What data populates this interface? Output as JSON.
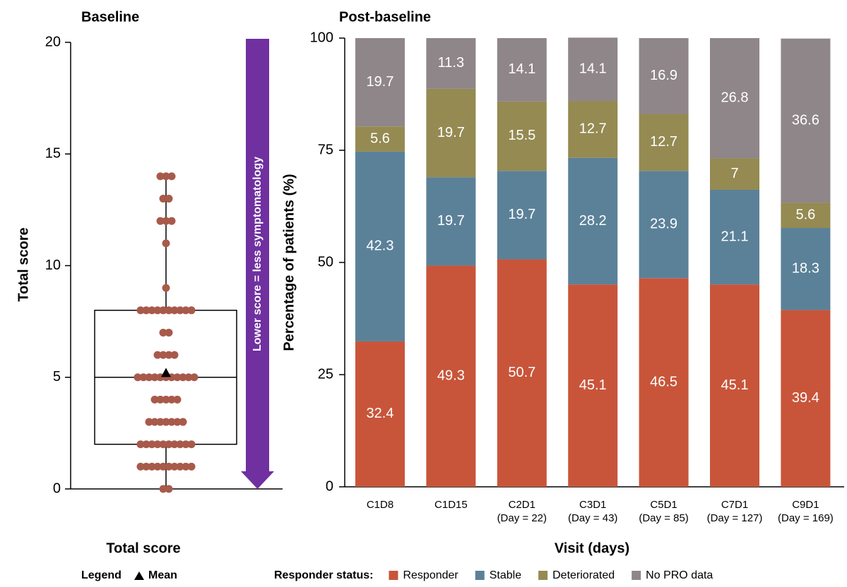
{
  "chart_data": [
    {
      "type": "box",
      "title": "Baseline",
      "ylabel": "Total score",
      "xlabel": "Total score",
      "ylim": [
        0,
        20
      ],
      "yticks": [
        0,
        5,
        10,
        15,
        20
      ],
      "box": {
        "min": 0,
        "q1": 2,
        "median": 5,
        "q3": 8,
        "max": 14,
        "mean": 5.2
      },
      "points": [
        0,
        0,
        1,
        1,
        1,
        1,
        1,
        1,
        1,
        1,
        1,
        1,
        2,
        2,
        2,
        2,
        2,
        2,
        2,
        2,
        2,
        2,
        3,
        3,
        3,
        3,
        3,
        3,
        3,
        4,
        4,
        4,
        4,
        4,
        5,
        5,
        5,
        5,
        5,
        5,
        5,
        5,
        5,
        5,
        5,
        6,
        6,
        6,
        6,
        7,
        7,
        8,
        8,
        8,
        8,
        8,
        8,
        8,
        8,
        8,
        8,
        9,
        11,
        12,
        12,
        12,
        13,
        13,
        14,
        14,
        14
      ],
      "point_color": "#a85a4a",
      "box_color": "#000000",
      "annotation": "Lower score = less symptomatology",
      "annotation_color": "#7030a0",
      "legend_title": "Legend",
      "legend_mean": "Mean"
    },
    {
      "type": "bar",
      "stacked": true,
      "title": "Post-baseline",
      "ylabel": "Percentage of patients (%)",
      "xlabel": "Visit (days)",
      "categories": [
        "C1D8",
        "C1D15",
        "C2D1",
        "C3D1",
        "C5D1",
        "C7D1",
        "C9D1"
      ],
      "category_sublabels": [
        null,
        null,
        "(Day = 22)",
        "(Day = 43)",
        "(Day = 85)",
        "(Day = 127)",
        "(Day = 169)"
      ],
      "ylim": [
        0,
        100
      ],
      "yticks": [
        0,
        25,
        50,
        75,
        100
      ],
      "legend_title": "Responder status:",
      "series": [
        {
          "name": "Responder",
          "color": "#c8553a",
          "values": [
            32.4,
            49.3,
            50.7,
            45.1,
            46.5,
            45.1,
            39.4
          ]
        },
        {
          "name": "Stable",
          "color": "#5b8199",
          "values": [
            42.3,
            19.7,
            19.7,
            28.2,
            23.9,
            21.1,
            18.3
          ]
        },
        {
          "name": "Deteriorated",
          "color": "#948a52",
          "values": [
            5.6,
            19.7,
            15.5,
            12.7,
            12.7,
            7,
            5.6
          ]
        },
        {
          "name": "No PRO data",
          "color": "#8f8689",
          "values": [
            19.7,
            11.3,
            14.1,
            14.1,
            16.9,
            26.8,
            36.6
          ]
        }
      ]
    }
  ]
}
